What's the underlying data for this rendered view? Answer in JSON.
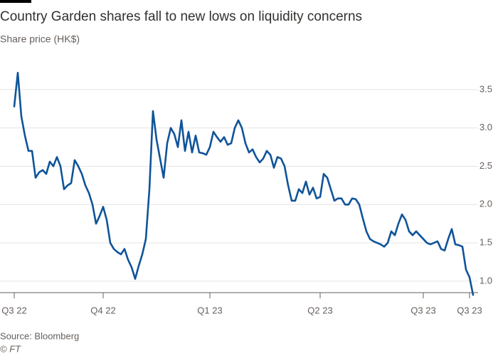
{
  "chart_data": {
    "type": "line",
    "title": "Country Garden shares fall to new lows on liquidity concerns",
    "subtitle": "Share price (HK$)",
    "source": "Source: Bloomberg",
    "credit": "© FT",
    "color": "#0f5499",
    "grid": true,
    "categories": [
      "Q3 22",
      null,
      null,
      null,
      null,
      null,
      null,
      null,
      null,
      null,
      null,
      null,
      null,
      null,
      null,
      null,
      null,
      null,
      null,
      null,
      null,
      null,
      null,
      null,
      null,
      "Q4 22",
      null,
      null,
      null,
      null,
      null,
      null,
      null,
      null,
      null,
      null,
      null,
      null,
      null,
      null,
      null,
      null,
      null,
      null,
      null,
      null,
      null,
      null,
      null,
      null,
      null,
      null,
      null,
      null,
      null,
      "Q1 23",
      null,
      null,
      null,
      null,
      null,
      null,
      null,
      null,
      null,
      null,
      null,
      null,
      null,
      null,
      null,
      null,
      null,
      null,
      null,
      null,
      null,
      null,
      null,
      null,
      null,
      null,
      null,
      null,
      null,
      null,
      "Q2 23",
      null,
      null,
      null,
      null,
      null,
      null,
      null,
      null,
      null,
      null,
      null,
      null,
      null,
      null,
      null,
      null,
      null,
      null,
      null,
      null,
      null,
      null,
      null,
      null,
      null,
      null,
      null,
      null,
      "Q3 23",
      null,
      null,
      null,
      null,
      null,
      null,
      null,
      null,
      null,
      null,
      null,
      null,
      "Q3 23",
      null
    ],
    "values": [
      3.28,
      3.72,
      3.15,
      2.9,
      2.7,
      2.7,
      2.35,
      2.42,
      2.45,
      2.4,
      2.56,
      2.5,
      2.62,
      2.5,
      2.2,
      2.25,
      2.28,
      2.58,
      2.5,
      2.4,
      2.25,
      2.15,
      2.0,
      1.75,
      1.85,
      1.97,
      1.8,
      1.5,
      1.42,
      1.38,
      1.35,
      1.42,
      1.28,
      1.18,
      1.03,
      1.2,
      1.35,
      1.55,
      2.2,
      3.22,
      2.85,
      2.6,
      2.35,
      2.8,
      3.0,
      2.92,
      2.75,
      3.1,
      2.7,
      2.95,
      2.68,
      2.9,
      2.68,
      2.67,
      2.65,
      2.75,
      2.95,
      2.88,
      2.82,
      2.88,
      2.78,
      2.8,
      3.0,
      3.1,
      3.0,
      2.8,
      2.68,
      2.72,
      2.62,
      2.55,
      2.6,
      2.7,
      2.65,
      2.48,
      2.62,
      2.6,
      2.5,
      2.25,
      2.05,
      2.05,
      2.2,
      2.15,
      2.3,
      2.13,
      2.22,
      2.08,
      2.1,
      2.4,
      2.35,
      2.2,
      2.05,
      2.08,
      2.08,
      2.0,
      2.0,
      2.08,
      2.07,
      2.0,
      1.82,
      1.65,
      1.55,
      1.52,
      1.5,
      1.48,
      1.45,
      1.5,
      1.65,
      1.6,
      1.75,
      1.87,
      1.8,
      1.65,
      1.6,
      1.65,
      1.6,
      1.55,
      1.5,
      1.48,
      1.5,
      1.52,
      1.42,
      1.4,
      1.55,
      1.68,
      1.48,
      1.47,
      1.45,
      1.15,
      1.05,
      0.82
    ],
    "ylim": [
      0.85,
      3.75
    ],
    "yticks": [
      {
        "value": 1,
        "label": "1.0"
      },
      1.5,
      {
        "value": 2,
        "label": "2.0"
      },
      2.5,
      {
        "value": 3,
        "label": "3.0"
      },
      3.5
    ]
  }
}
